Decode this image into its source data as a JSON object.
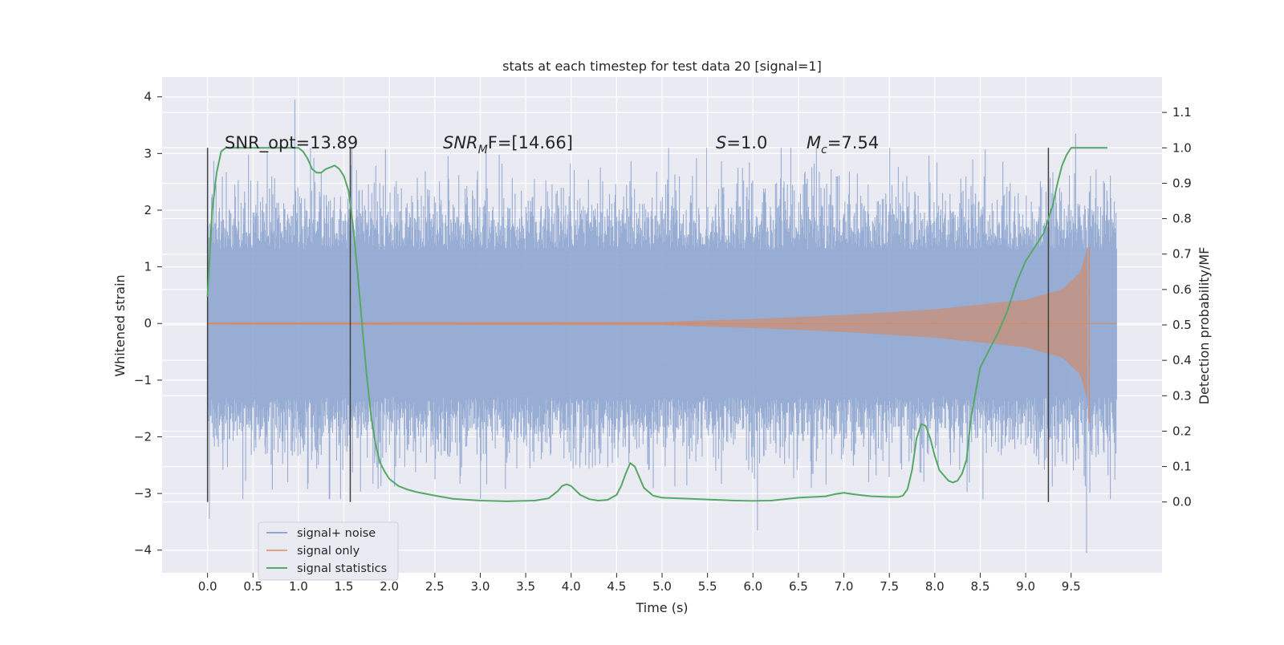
{
  "chart_data": {
    "type": "line",
    "title": "stats at each timestep for test data 20 [signal=1]",
    "xlabel": "Time (s)",
    "ylabel_left": "Whitened strain",
    "ylabel_right": "Detection probability/MF",
    "xlim": [
      -0.5,
      10.5
    ],
    "ylim_left": [
      -4.4,
      4.35
    ],
    "ylim_right": [
      -0.2,
      1.2
    ],
    "x_ticks": [
      "0.0",
      "0.5",
      "1.0",
      "1.5",
      "2.0",
      "2.5",
      "3.0",
      "3.5",
      "4.0",
      "4.5",
      "5.0",
      "5.5",
      "6.0",
      "6.5",
      "7.0",
      "7.5",
      "8.0",
      "8.5",
      "9.0",
      "9.5"
    ],
    "y_left_ticks": [
      "4",
      "3",
      "2",
      "1",
      "0",
      "−1",
      "−2",
      "−3",
      "−4"
    ],
    "y_right_ticks": [
      "1.1",
      "1.0",
      "0.9",
      "0.8",
      "0.7",
      "0.6",
      "0.5",
      "0.4",
      "0.3",
      "0.2",
      "0.1",
      "0.0"
    ],
    "grid": true,
    "legend_position": "bottom-left",
    "colors": {
      "signal_noise": "#8fa6d0",
      "signal_only": "#dd8452",
      "signal_statistics": "#55a868",
      "background": "#eaeaf2",
      "grid": "#ffffff",
      "vlines": "#404040"
    },
    "series": [
      {
        "name": "signal+ noise",
        "axis": "left",
        "x_range": [
          0,
          10
        ],
        "envelope_typical": [
          -1.3,
          1.3
        ],
        "peaks": [
          [
            0.96,
            3.95
          ],
          [
            0.02,
            -3.45
          ],
          [
            6.05,
            -3.65
          ],
          [
            9.67,
            -4.05
          ],
          [
            9.55,
            3.35
          ]
        ]
      },
      {
        "name": "signal only",
        "axis": "left",
        "x_range": [
          0,
          9.7
        ],
        "amplitude_envelope": [
          [
            0,
            0.02
          ],
          [
            5.0,
            0.03
          ],
          [
            6.0,
            0.08
          ],
          [
            7.0,
            0.15
          ],
          [
            8.0,
            0.25
          ],
          [
            9.0,
            0.42
          ],
          [
            9.4,
            0.6
          ],
          [
            9.6,
            0.9
          ],
          [
            9.68,
            1.35
          ],
          [
            9.7,
            0
          ]
        ]
      },
      {
        "name": "signal statistics",
        "axis": "right",
        "x": [
          0.0,
          0.05,
          0.1,
          0.15,
          0.2,
          0.3,
          0.4,
          0.6,
          0.8,
          0.9,
          1.0,
          1.05,
          1.1,
          1.15,
          1.2,
          1.25,
          1.3,
          1.35,
          1.4,
          1.45,
          1.5,
          1.55,
          1.6,
          1.65,
          1.7,
          1.75,
          1.8,
          1.85,
          1.9,
          1.95,
          2.0,
          2.05,
          2.1,
          2.2,
          2.3,
          2.5,
          2.7,
          3.0,
          3.3,
          3.6,
          3.75,
          3.85,
          3.9,
          3.95,
          4.0,
          4.1,
          4.2,
          4.3,
          4.4,
          4.5,
          4.55,
          4.6,
          4.65,
          4.7,
          4.75,
          4.8,
          4.9,
          5.0,
          5.2,
          5.5,
          5.8,
          6.0,
          6.2,
          6.5,
          6.8,
          6.9,
          7.0,
          7.1,
          7.3,
          7.5,
          7.6,
          7.65,
          7.7,
          7.75,
          7.8,
          7.85,
          7.9,
          7.95,
          8.0,
          8.05,
          8.1,
          8.15,
          8.2,
          8.25,
          8.3,
          8.35,
          8.4,
          8.5,
          8.6,
          8.7,
          8.8,
          8.9,
          9.0,
          9.1,
          9.2,
          9.3,
          9.35,
          9.4,
          9.45,
          9.5,
          9.6,
          9.7,
          9.8,
          9.9
        ],
        "y": [
          0.58,
          0.82,
          0.93,
          0.99,
          1.0,
          1.0,
          1.0,
          1.0,
          1.0,
          1.0,
          1.0,
          0.99,
          0.97,
          0.94,
          0.93,
          0.93,
          0.94,
          0.945,
          0.95,
          0.94,
          0.92,
          0.88,
          0.78,
          0.65,
          0.5,
          0.36,
          0.24,
          0.16,
          0.11,
          0.085,
          0.065,
          0.055,
          0.045,
          0.035,
          0.028,
          0.018,
          0.009,
          0.004,
          0.002,
          0.004,
          0.01,
          0.03,
          0.045,
          0.05,
          0.045,
          0.02,
          0.008,
          0.004,
          0.006,
          0.02,
          0.045,
          0.08,
          0.11,
          0.1,
          0.07,
          0.04,
          0.018,
          0.012,
          0.01,
          0.007,
          0.004,
          0.003,
          0.004,
          0.012,
          0.016,
          0.022,
          0.026,
          0.022,
          0.016,
          0.014,
          0.014,
          0.018,
          0.036,
          0.09,
          0.18,
          0.22,
          0.215,
          0.18,
          0.13,
          0.09,
          0.075,
          0.06,
          0.055,
          0.06,
          0.08,
          0.12,
          0.24,
          0.38,
          0.43,
          0.48,
          0.54,
          0.62,
          0.68,
          0.72,
          0.76,
          0.84,
          0.9,
          0.95,
          0.98,
          1.0,
          1.0,
          1.0,
          1.0,
          1.0
        ]
      }
    ],
    "vertical_lines_x": [
      0.0,
      1.57,
      9.25
    ],
    "annotations": {
      "snr_opt": "SNR_opt=13.89",
      "snr_mf_var": "SNR",
      "snr_mf_sub": "M",
      "snr_mf_rest": "F=[14.66]",
      "s_var": "S",
      "s_rest": "=1.0",
      "mc_var": "M",
      "mc_sub": "c",
      "mc_rest": "=7.54"
    }
  }
}
